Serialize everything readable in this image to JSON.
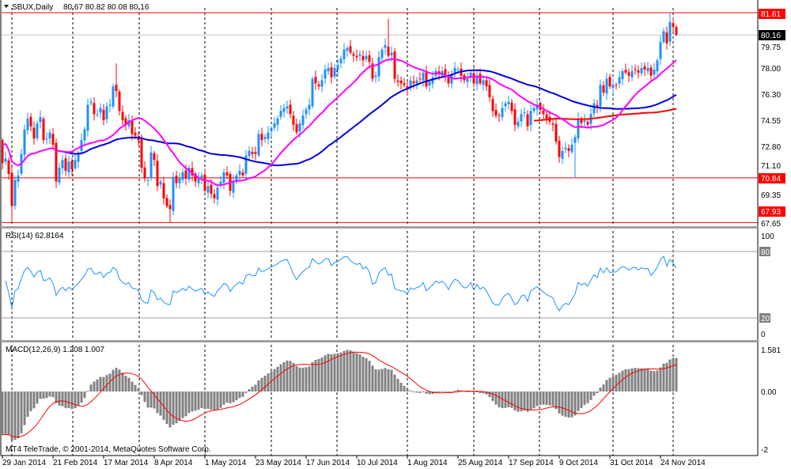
{
  "header": {
    "symbol": "SBUX,Daily",
    "ohlc": "80.67 80.82 80.08 80.16",
    "menu_icon": "triangle-down-icon"
  },
  "rsi_pane": {
    "label": "RSI(14) 62.8164",
    "levels": [
      "100",
      "80",
      "20",
      "0"
    ]
  },
  "macd_pane": {
    "label": "MACD(12,26,9) 1.208 1.007",
    "axis": [
      "1.581",
      "0.00",
      "-2"
    ]
  },
  "copyright": "MT4 TeleTrade, © 2001-2014, MetaQuotes Software Corp.",
  "price_axis": [
    "79.75",
    "78.00",
    "76.30",
    "74.55",
    "72.80",
    "71.10",
    "69.35",
    "67.65"
  ],
  "price_tags": [
    {
      "value": "81.61",
      "color": "#ff0000"
    },
    {
      "value": "80.16",
      "color": "#000000"
    },
    {
      "value": "70.84",
      "color": "#ff0000"
    },
    {
      "value": "67.93",
      "color": "#ff0000"
    }
  ],
  "colors": {
    "bull": "#1e90ff",
    "bear": "#ff0000",
    "ma_fast": "#ff00ff",
    "ma_mid": "#0000dd",
    "ma_slow": "#ff0000",
    "rsi": "#1e90ff",
    "macd_hist": "#808080",
    "macd_signal": "#ff0000"
  },
  "chart_data": {
    "type": "candlestick",
    "symbol": "SBUX",
    "timeframe": "Daily",
    "x_labels": [
      "29 Jan 2014",
      "21 Feb 2014",
      "17 Mar 2014",
      "8 Apr 2014",
      "1 May 2014",
      "23 May 2014",
      "17 Jun 2014",
      "10 Jul 2014",
      "1 Aug 2014",
      "25 Aug 2014",
      "17 Sep 2014",
      "9 Oct 2014",
      "31 Oct 2014",
      "24 Nov 2014"
    ],
    "ylim": [
      67.65,
      81.61
    ],
    "last_bar": {
      "open": 80.67,
      "high": 80.82,
      "low": 80.08,
      "close": 80.16
    },
    "horizontal_lines": [
      81.61,
      70.84,
      67.93
    ],
    "bid_line": 80.16,
    "closes": [
      71.8,
      72.1,
      71.1,
      69.0,
      70.7,
      71.0,
      72.4,
      74.0,
      74.7,
      74.2,
      73.4,
      74.4,
      74.8,
      73.3,
      73.4,
      73.8,
      73.0,
      70.6,
      71.5,
      72.0,
      71.3,
      71.9,
      71.4,
      72.0,
      72.5,
      73.3,
      74.0,
      75.6,
      75.8,
      75.0,
      75.0,
      75.4,
      74.6,
      75.5,
      75.6,
      76.8,
      76.5,
      75.2,
      74.6,
      74.3,
      74.6,
      73.7,
      73.6,
      73.3,
      71.5,
      70.8,
      70.7,
      72.5,
      72.0,
      70.3,
      70.6,
      69.5,
      69.0,
      68.8,
      70.9,
      70.5,
      70.8,
      71.2,
      70.8,
      71.5,
      71.0,
      70.6,
      70.8,
      71.0,
      70.0,
      70.3,
      69.8,
      69.5,
      70.2,
      70.6,
      71.2,
      71.0,
      70.0,
      70.6,
      71.0,
      71.3,
      71.0,
      72.3,
      72.6,
      72.4,
      72.4,
      73.7,
      73.3,
      73.5,
      73.8,
      74.1,
      74.4,
      74.7,
      75.2,
      75.4,
      75.5,
      75.0,
      74.3,
      73.8,
      74.4,
      74.9,
      75.3,
      75.6,
      77.3,
      77.0,
      76.8,
      77.2,
      77.9,
      78.0,
      77.4,
      78.0,
      78.2,
      78.6,
      79.2,
      79.3,
      79.0,
      78.8,
      78.7,
      78.9,
      78.5,
      78.8,
      78.4,
      77.3,
      77.5,
      78.7,
      79.2,
      79.5,
      78.8,
      79.0,
      77.3,
      77.1,
      77.0,
      76.9,
      76.6,
      77.2,
      77.0,
      77.2,
      77.3,
      77.7,
      76.8,
      77.1,
      77.4,
      77.8,
      77.6,
      77.8,
      77.5,
      77.0,
      77.6,
      78.0,
      77.9,
      77.5,
      77.2,
      77.3,
      77.7,
      77.0,
      77.5,
      77.0,
      77.2,
      76.8,
      76.1,
      75.2,
      74.9,
      74.9,
      75.4,
      75.7,
      75.8,
      75.2,
      74.3,
      74.5,
      75.0,
      75.1,
      74.2,
      75.2,
      75.4,
      75.6,
      75.3,
      75.0,
      74.7,
      74.5,
      74.3,
      73.2,
      72.2,
      72.6,
      72.8,
      72.6,
      73.0,
      73.5,
      74.7,
      74.4,
      74.6,
      74.3,
      75.0,
      75.7,
      75.4,
      76.9,
      76.4,
      77.3,
      76.8,
      76.9,
      76.9,
      77.4,
      77.8,
      77.7,
      77.5,
      77.8,
      77.9,
      77.7,
      78.0,
      77.9,
      78.0,
      77.5,
      77.9,
      78.5,
      79.7,
      80.4,
      79.6,
      81.0,
      80.67,
      80.16
    ],
    "extremes": [
      {
        "i": 3,
        "low": 67.95
      },
      {
        "i": 36,
        "high": 78.3
      },
      {
        "i": 53,
        "low": 67.93
      },
      {
        "i": 122,
        "high": 81.2
      },
      {
        "i": 181,
        "low": 70.84
      },
      {
        "i": 211,
        "high": 81.61
      }
    ]
  }
}
